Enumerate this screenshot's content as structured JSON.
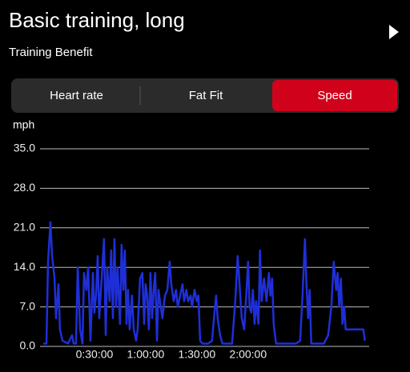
{
  "header": {
    "title": "Basic training, long",
    "subtitle": "Training Benefit"
  },
  "tabs": [
    "Heart rate",
    "Fat Fit",
    "Speed"
  ],
  "active_tab": 2,
  "chart_data": {
    "type": "line",
    "y_label": "mph",
    "xlim": [
      0,
      190
    ],
    "xticks": [
      {
        "value": 30,
        "label": "0:30:00"
      },
      {
        "value": 60,
        "label": "1:00:00"
      },
      {
        "value": 90,
        "label": "1:30:00"
      },
      {
        "value": 120,
        "label": "2:00:00"
      }
    ],
    "ylim": [
      0,
      35
    ],
    "yticks": [
      {
        "value": 0,
        "label": "0.0"
      },
      {
        "value": 7,
        "label": "7.0"
      },
      {
        "value": 14,
        "label": "14.0"
      },
      {
        "value": 21,
        "label": "21.0"
      },
      {
        "value": 28,
        "label": "28.0"
      },
      {
        "value": 35,
        "label": "35.0"
      }
    ],
    "grid": true,
    "series": [
      {
        "color": "#1f2fd8",
        "x": [
          0,
          1.9,
          2.8,
          4.2,
          5.2,
          6.6,
          7.5,
          8.9,
          9.8,
          11.3,
          14.5,
          16.9,
          17.8,
          19.2,
          20.2,
          21.6,
          23.0,
          23.9,
          25.3,
          26.3,
          27.7,
          29.1,
          30.0,
          30.9,
          31.9,
          32.8,
          34.2,
          35.6,
          36.6,
          37.5,
          38.9,
          39.8,
          40.8,
          41.7,
          42.7,
          43.6,
          45.0,
          45.9,
          46.9,
          47.8,
          48.8,
          49.7,
          50.6,
          52.0,
          53.0,
          54.4,
          55.3,
          56.7,
          58.1,
          59.1,
          60.0,
          60.9,
          61.9,
          62.8,
          63.8,
          64.7,
          65.6,
          66.6,
          67.5,
          68.4,
          69.8,
          71.3,
          72.7,
          74.1,
          75.0,
          76.4,
          77.8,
          78.8,
          80.2,
          81.6,
          82.5,
          83.9,
          84.8,
          86.3,
          87.2,
          88.6,
          90.0,
          90.9,
          91.9,
          93.3,
          96.6,
          98.9,
          100.3,
          101.3,
          102.2,
          103.6,
          105.0,
          108.3,
          110.6,
          112.5,
          113.9,
          114.8,
          116.3,
          117.7,
          119.1,
          120.0,
          120.9,
          121.9,
          122.8,
          123.8,
          124.7,
          126.1,
          127.0,
          128.0,
          129.4,
          130.8,
          132.2,
          133.1,
          134.1,
          135.0,
          136.4,
          138.8,
          143.4,
          148.1,
          150.5,
          151.9,
          153.3,
          154.2,
          155.2,
          156.1,
          157.0,
          159.8,
          164.5,
          166.9,
          168.8,
          170.2,
          171.6,
          172.5,
          173.4,
          174.4,
          175.3,
          176.3,
          177.2,
          179.1,
          185.6,
          187.5,
          188.4
        ],
        "values": [
          0.5,
          0.5,
          15,
          22,
          16,
          12,
          5,
          11,
          3,
          1,
          0.5,
          2,
          0.5,
          0.5,
          14,
          3,
          0.5,
          13,
          10,
          14,
          1,
          13,
          6,
          9,
          16,
          5,
          12,
          19,
          2,
          14,
          8,
          17,
          5,
          19,
          7,
          14,
          4,
          18,
          10,
          17,
          4,
          10,
          3,
          9,
          3,
          1,
          3,
          12,
          13,
          4,
          11,
          9,
          3,
          13,
          5,
          10,
          13,
          1,
          10,
          8,
          5,
          9,
          10,
          15,
          11,
          8,
          10,
          7,
          9,
          11,
          8,
          10,
          8,
          9,
          7,
          10,
          8,
          9,
          1,
          0.5,
          0.5,
          1,
          6,
          9,
          5,
          2,
          0.5,
          0.5,
          0.5,
          8,
          16,
          12,
          5,
          3,
          10,
          15,
          7,
          6,
          10,
          4,
          8,
          4,
          17,
          8,
          12,
          8,
          13,
          9,
          12,
          4,
          0.5,
          0.5,
          0.5,
          0.5,
          1,
          9,
          19,
          11,
          5,
          10,
          0.5,
          0.5,
          0.5,
          2,
          7,
          15,
          10,
          13,
          7,
          12,
          4,
          7,
          3,
          3,
          3,
          3,
          1
        ]
      }
    ]
  }
}
